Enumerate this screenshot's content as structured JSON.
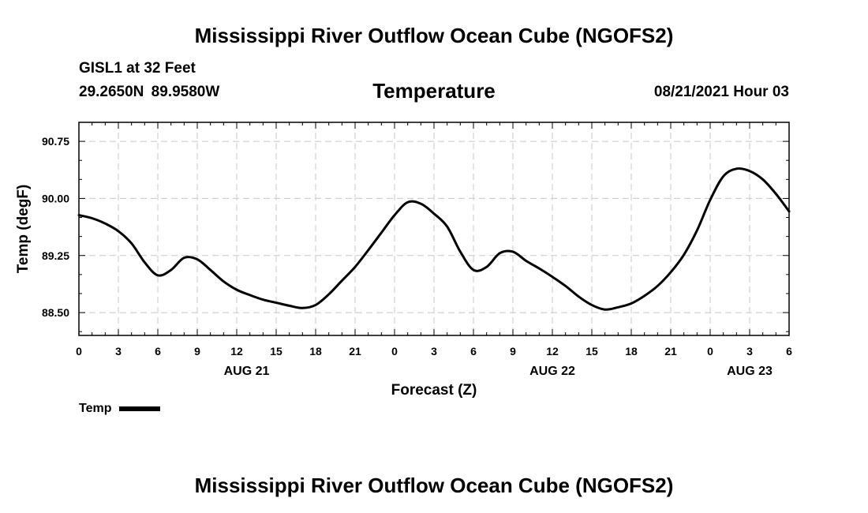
{
  "header": {
    "title": "Mississippi River Outflow Ocean Cube (NGOFS2)",
    "station": "GISL1 at 32 Feet",
    "coords": "29.2650N  89.9580W",
    "chart_title": "Temperature",
    "datetime": "08/21/2021 Hour 03"
  },
  "footer": {
    "title": "Mississippi River Outflow Ocean Cube (NGOFS2)"
  },
  "legend": {
    "label": "Temp",
    "color": "#000000"
  },
  "chart_data": {
    "type": "line",
    "title": "Temperature",
    "xlabel": "Forecast (Z)",
    "ylabel": "Temp (degF)",
    "xlim": [
      0,
      54
    ],
    "ylim": [
      88.2,
      91.0
    ],
    "grid": true,
    "y_ticks": [
      88.5,
      89.25,
      90.0,
      90.75
    ],
    "y_tick_labels": [
      "88.50",
      "89.25",
      "90.00",
      "90.75"
    ],
    "x_ticks": [
      0,
      3,
      6,
      9,
      12,
      15,
      18,
      21,
      24,
      27,
      30,
      33,
      36,
      39,
      42,
      45,
      48,
      51,
      54
    ],
    "x_tick_labels": [
      "0",
      "3",
      "6",
      "9",
      "12",
      "15",
      "18",
      "21",
      "0",
      "3",
      "6",
      "9",
      "12",
      "15",
      "18",
      "21",
      "0",
      "3",
      "6"
    ],
    "date_labels": [
      {
        "hour": 12.75,
        "label": "AUG 21"
      },
      {
        "hour": 36.0,
        "label": "AUG 22"
      },
      {
        "hour": 51.0,
        "label": "AUG 23"
      }
    ],
    "series": [
      {
        "name": "Temp",
        "color": "#000000",
        "x": [
          0,
          1,
          2,
          3,
          4,
          5,
          6,
          7,
          8,
          9,
          10,
          11,
          12,
          13,
          14,
          15,
          16,
          17,
          18,
          19,
          20,
          21,
          22,
          23,
          24,
          25,
          26,
          27,
          28,
          29,
          30,
          31,
          32,
          33,
          34,
          35,
          36,
          37,
          38,
          39,
          40,
          41,
          42,
          43,
          44,
          45,
          46,
          47,
          48,
          49,
          50,
          51,
          52,
          53,
          54
        ],
        "y": [
          89.78,
          89.74,
          89.67,
          89.57,
          89.41,
          89.16,
          88.99,
          89.06,
          89.22,
          89.2,
          89.06,
          88.91,
          88.8,
          88.73,
          88.67,
          88.63,
          88.59,
          88.56,
          88.6,
          88.74,
          88.92,
          89.1,
          89.32,
          89.55,
          89.78,
          89.95,
          89.93,
          89.8,
          89.63,
          89.3,
          89.06,
          89.1,
          89.28,
          89.3,
          89.18,
          89.08,
          88.97,
          88.85,
          88.71,
          88.6,
          88.54,
          88.57,
          88.62,
          88.72,
          88.85,
          89.03,
          89.26,
          89.58,
          89.98,
          90.29,
          90.39,
          90.36,
          90.25,
          90.06,
          89.83
        ]
      }
    ]
  }
}
